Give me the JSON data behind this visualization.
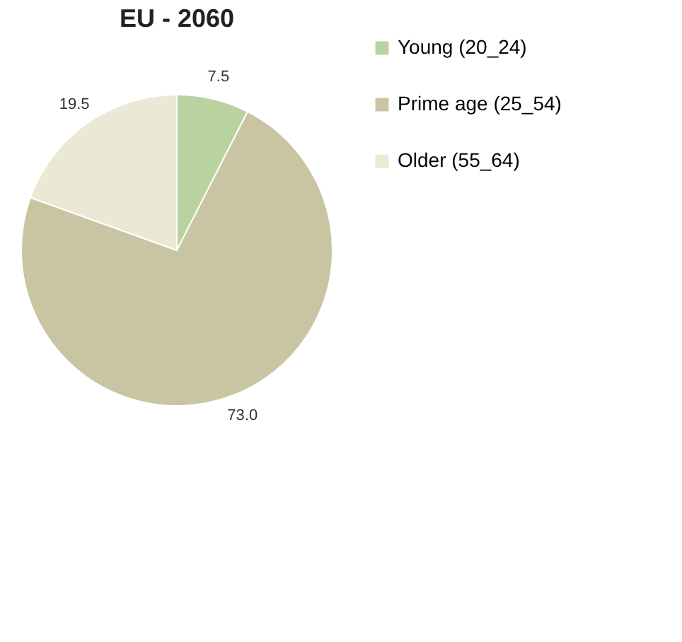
{
  "chart_data": {
    "type": "pie",
    "title": "EU - 2060",
    "categories": [
      "Young (20_24)",
      "Prime age (25_54)",
      "Older (55_64)"
    ],
    "values": [
      7.5,
      73.0,
      19.5
    ],
    "value_labels": [
      "7.5",
      "73.0",
      "19.5"
    ],
    "colors": [
      "#b9d3a0",
      "#c9c5a2",
      "#ece8d6"
    ],
    "legend": "right"
  }
}
